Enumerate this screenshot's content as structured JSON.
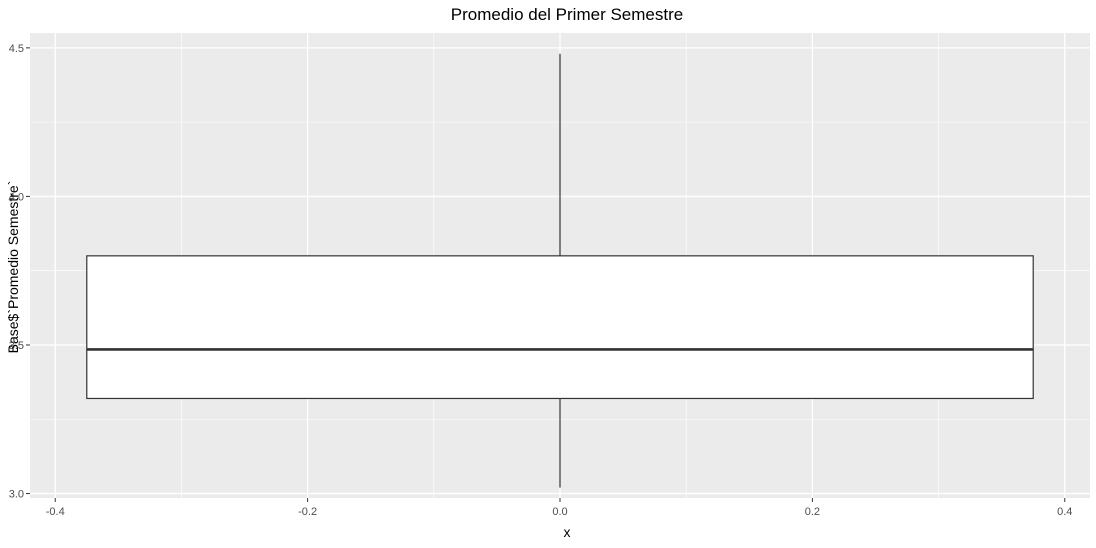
{
  "chart_data": {
    "type": "boxplot",
    "title": "Promedio del Primer Semestre",
    "xlabel": "x",
    "ylabel": "Base$`Promedio  Semestre`",
    "xlim": [
      -0.42,
      0.42
    ],
    "ylim": [
      2.985,
      4.55
    ],
    "x_ticks": [
      {
        "value": -0.4,
        "label": "-0.4"
      },
      {
        "value": -0.2,
        "label": "-0.2"
      },
      {
        "value": 0.0,
        "label": "0.0"
      },
      {
        "value": 0.2,
        "label": "0.2"
      },
      {
        "value": 0.4,
        "label": "0.4"
      }
    ],
    "x_minor_ticks": [
      -0.3,
      -0.1,
      0.1,
      0.3
    ],
    "y_ticks": [
      {
        "value": 3.0,
        "label": "3.0"
      },
      {
        "value": 3.5,
        "label": "3.5"
      },
      {
        "value": 4.0,
        "label": "4.0"
      },
      {
        "value": 4.5,
        "label": "4.5"
      }
    ],
    "y_minor_ticks": [
      3.25,
      3.75,
      4.25
    ],
    "box": {
      "center": 0.0,
      "width": 0.75,
      "min": 3.02,
      "q1": 3.32,
      "median": 3.485,
      "q3": 3.8,
      "max": 4.48
    },
    "grid": true,
    "colors": {
      "panel": "#ebebeb",
      "grid": "#ffffff",
      "box_fill": "#ffffff",
      "box_stroke": "#333333"
    }
  }
}
